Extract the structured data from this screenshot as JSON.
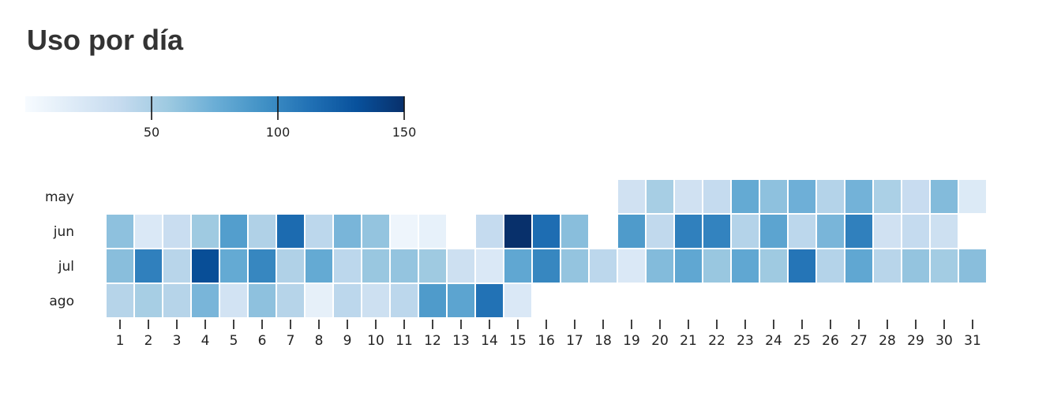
{
  "title": "Uso por día",
  "colors": {
    "scale": [
      "#f7fbff",
      "#deebf7",
      "#c6dbef",
      "#9ecae1",
      "#6baed6",
      "#4292c6",
      "#2171b5",
      "#08519c",
      "#08306b"
    ],
    "title": "#333333",
    "text": "#222222"
  },
  "chart_data": {
    "type": "heatmap",
    "title": "Uso por día",
    "rows": [
      "may",
      "jun",
      "jul",
      "ago"
    ],
    "columns": [
      "1",
      "2",
      "3",
      "4",
      "5",
      "6",
      "7",
      "8",
      "9",
      "10",
      "11",
      "12",
      "13",
      "14",
      "15",
      "16",
      "17",
      "18",
      "19",
      "20",
      "21",
      "22",
      "23",
      "24",
      "25",
      "26",
      "27",
      "28",
      "29",
      "30",
      "31"
    ],
    "values": [
      [
        null,
        null,
        null,
        null,
        null,
        null,
        null,
        null,
        null,
        null,
        null,
        null,
        null,
        null,
        null,
        null,
        null,
        null,
        30,
        52,
        30,
        38,
        78,
        62,
        74,
        46,
        72,
        50,
        36,
        66,
        20
      ],
      [
        62,
        22,
        35,
        56,
        86,
        48,
        116,
        42,
        70,
        60,
        7,
        12,
        null,
        38,
        150,
        115,
        64,
        null,
        88,
        40,
        104,
        102,
        46,
        82,
        42,
        70,
        104,
        30,
        38,
        32,
        null
      ],
      [
        64,
        104,
        44,
        133,
        78,
        100,
        48,
        78,
        42,
        58,
        60,
        56,
        32,
        22,
        80,
        100,
        60,
        42,
        22,
        66,
        80,
        58,
        80,
        56,
        110,
        46,
        80,
        44,
        60,
        54,
        64
      ],
      [
        45,
        52,
        45,
        70,
        28,
        62,
        45,
        13,
        42,
        32,
        42,
        88,
        82,
        112,
        22,
        null,
        null,
        null,
        null,
        null,
        null,
        null,
        null,
        null,
        null,
        null,
        null,
        null,
        null,
        null,
        null
      ]
    ],
    "colorbar": {
      "min": 0,
      "max": 150,
      "ticks": [
        {
          "value": 50,
          "label": "50"
        },
        {
          "value": 100,
          "label": "100"
        },
        {
          "value": 150,
          "label": "150"
        }
      ]
    },
    "xlabel": "",
    "ylabel": ""
  }
}
